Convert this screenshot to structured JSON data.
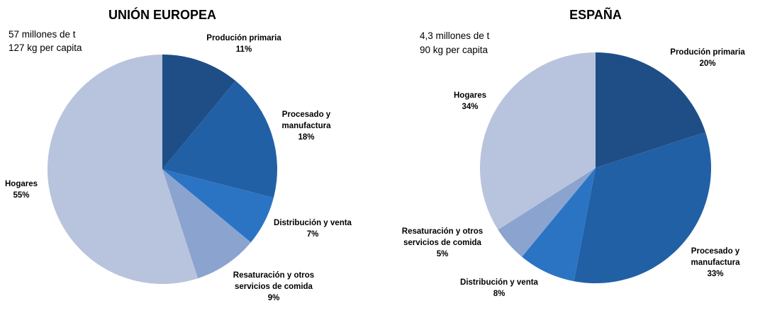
{
  "chart_data": [
    {
      "type": "pie",
      "title": "UNIÓN EUROPEA",
      "totals": [
        "57 millones de t",
        "127 kg per capita"
      ],
      "slices": [
        {
          "name": "Produción primaria",
          "label_lines": [
            "Produción primaria"
          ],
          "value": 11,
          "pct_label": "11%",
          "color": "#1f4e87"
        },
        {
          "name": "Procesado y manufactura",
          "label_lines": [
            "Procesado y",
            "manufactura"
          ],
          "value": 18,
          "pct_label": "18%",
          "color": "#2260a5"
        },
        {
          "name": "Distribución y venta",
          "label_lines": [
            "Distribución y venta"
          ],
          "value": 7,
          "pct_label": "7%",
          "color": "#2b74c4"
        },
        {
          "name": "Resaturación y otros servicios de comida",
          "label_lines": [
            "Resaturación y otros",
            "servicios de comida"
          ],
          "value": 9,
          "pct_label": "9%",
          "color": "#8aa4cf"
        },
        {
          "name": "Hogares",
          "label_lines": [
            "Hogares"
          ],
          "value": 55,
          "pct_label": "55%",
          "color": "#b8c4dd"
        }
      ]
    },
    {
      "type": "pie",
      "title": "ESPAÑA",
      "totals": [
        "4,3 millones de t",
        "90 kg per capita"
      ],
      "slices": [
        {
          "name": "Produción primaria",
          "label_lines": [
            "Produción primaria"
          ],
          "value": 20,
          "pct_label": "20%",
          "color": "#1f4e87"
        },
        {
          "name": "Procesado y manufactura",
          "label_lines": [
            "Procesado y",
            "manufactura"
          ],
          "value": 33,
          "pct_label": "33%",
          "color": "#2260a5"
        },
        {
          "name": "Distribución y venta",
          "label_lines": [
            "Distribución y venta"
          ],
          "value": 8,
          "pct_label": "8%",
          "color": "#2b74c4"
        },
        {
          "name": "Resaturación y otros servicios de comida",
          "label_lines": [
            "Resaturación y otros",
            "servicios de comida"
          ],
          "value": 5,
          "pct_label": "5%",
          "color": "#8aa4cf"
        },
        {
          "name": "Hogares",
          "label_lines": [
            "Hogares"
          ],
          "value": 34,
          "pct_label": "34%",
          "color": "#b8c4dd"
        }
      ]
    }
  ]
}
